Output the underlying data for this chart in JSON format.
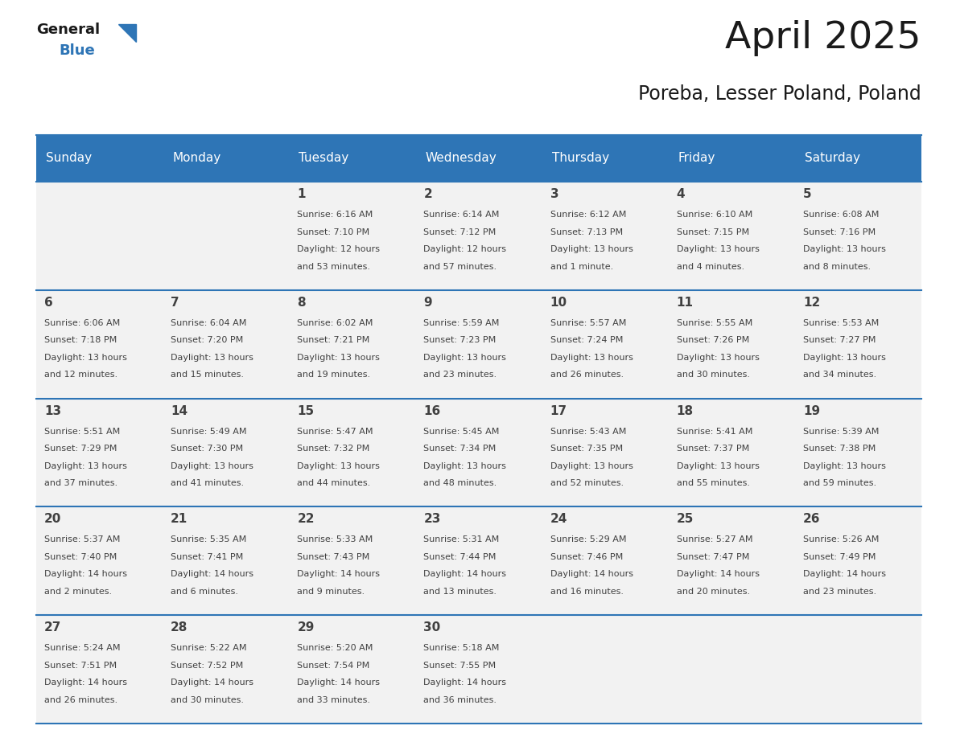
{
  "title": "April 2025",
  "subtitle": "Poreba, Lesser Poland, Poland",
  "header_bg": "#2E75B6",
  "header_text": "#FFFFFF",
  "day_names": [
    "Sunday",
    "Monday",
    "Tuesday",
    "Wednesday",
    "Thursday",
    "Friday",
    "Saturday"
  ],
  "cell_bg": "#F2F2F2",
  "row_line_color": "#2E75B6",
  "text_color": "#404040",
  "calendar": [
    [
      {
        "day": null,
        "info": ""
      },
      {
        "day": null,
        "info": ""
      },
      {
        "day": 1,
        "info": "Sunrise: 6:16 AM\nSunset: 7:10 PM\nDaylight: 12 hours\nand 53 minutes."
      },
      {
        "day": 2,
        "info": "Sunrise: 6:14 AM\nSunset: 7:12 PM\nDaylight: 12 hours\nand 57 minutes."
      },
      {
        "day": 3,
        "info": "Sunrise: 6:12 AM\nSunset: 7:13 PM\nDaylight: 13 hours\nand 1 minute."
      },
      {
        "day": 4,
        "info": "Sunrise: 6:10 AM\nSunset: 7:15 PM\nDaylight: 13 hours\nand 4 minutes."
      },
      {
        "day": 5,
        "info": "Sunrise: 6:08 AM\nSunset: 7:16 PM\nDaylight: 13 hours\nand 8 minutes."
      }
    ],
    [
      {
        "day": 6,
        "info": "Sunrise: 6:06 AM\nSunset: 7:18 PM\nDaylight: 13 hours\nand 12 minutes."
      },
      {
        "day": 7,
        "info": "Sunrise: 6:04 AM\nSunset: 7:20 PM\nDaylight: 13 hours\nand 15 minutes."
      },
      {
        "day": 8,
        "info": "Sunrise: 6:02 AM\nSunset: 7:21 PM\nDaylight: 13 hours\nand 19 minutes."
      },
      {
        "day": 9,
        "info": "Sunrise: 5:59 AM\nSunset: 7:23 PM\nDaylight: 13 hours\nand 23 minutes."
      },
      {
        "day": 10,
        "info": "Sunrise: 5:57 AM\nSunset: 7:24 PM\nDaylight: 13 hours\nand 26 minutes."
      },
      {
        "day": 11,
        "info": "Sunrise: 5:55 AM\nSunset: 7:26 PM\nDaylight: 13 hours\nand 30 minutes."
      },
      {
        "day": 12,
        "info": "Sunrise: 5:53 AM\nSunset: 7:27 PM\nDaylight: 13 hours\nand 34 minutes."
      }
    ],
    [
      {
        "day": 13,
        "info": "Sunrise: 5:51 AM\nSunset: 7:29 PM\nDaylight: 13 hours\nand 37 minutes."
      },
      {
        "day": 14,
        "info": "Sunrise: 5:49 AM\nSunset: 7:30 PM\nDaylight: 13 hours\nand 41 minutes."
      },
      {
        "day": 15,
        "info": "Sunrise: 5:47 AM\nSunset: 7:32 PM\nDaylight: 13 hours\nand 44 minutes."
      },
      {
        "day": 16,
        "info": "Sunrise: 5:45 AM\nSunset: 7:34 PM\nDaylight: 13 hours\nand 48 minutes."
      },
      {
        "day": 17,
        "info": "Sunrise: 5:43 AM\nSunset: 7:35 PM\nDaylight: 13 hours\nand 52 minutes."
      },
      {
        "day": 18,
        "info": "Sunrise: 5:41 AM\nSunset: 7:37 PM\nDaylight: 13 hours\nand 55 minutes."
      },
      {
        "day": 19,
        "info": "Sunrise: 5:39 AM\nSunset: 7:38 PM\nDaylight: 13 hours\nand 59 minutes."
      }
    ],
    [
      {
        "day": 20,
        "info": "Sunrise: 5:37 AM\nSunset: 7:40 PM\nDaylight: 14 hours\nand 2 minutes."
      },
      {
        "day": 21,
        "info": "Sunrise: 5:35 AM\nSunset: 7:41 PM\nDaylight: 14 hours\nand 6 minutes."
      },
      {
        "day": 22,
        "info": "Sunrise: 5:33 AM\nSunset: 7:43 PM\nDaylight: 14 hours\nand 9 minutes."
      },
      {
        "day": 23,
        "info": "Sunrise: 5:31 AM\nSunset: 7:44 PM\nDaylight: 14 hours\nand 13 minutes."
      },
      {
        "day": 24,
        "info": "Sunrise: 5:29 AM\nSunset: 7:46 PM\nDaylight: 14 hours\nand 16 minutes."
      },
      {
        "day": 25,
        "info": "Sunrise: 5:27 AM\nSunset: 7:47 PM\nDaylight: 14 hours\nand 20 minutes."
      },
      {
        "day": 26,
        "info": "Sunrise: 5:26 AM\nSunset: 7:49 PM\nDaylight: 14 hours\nand 23 minutes."
      }
    ],
    [
      {
        "day": 27,
        "info": "Sunrise: 5:24 AM\nSunset: 7:51 PM\nDaylight: 14 hours\nand 26 minutes."
      },
      {
        "day": 28,
        "info": "Sunrise: 5:22 AM\nSunset: 7:52 PM\nDaylight: 14 hours\nand 30 minutes."
      },
      {
        "day": 29,
        "info": "Sunrise: 5:20 AM\nSunset: 7:54 PM\nDaylight: 14 hours\nand 33 minutes."
      },
      {
        "day": 30,
        "info": "Sunrise: 5:18 AM\nSunset: 7:55 PM\nDaylight: 14 hours\nand 36 minutes."
      },
      {
        "day": null,
        "info": ""
      },
      {
        "day": null,
        "info": ""
      },
      {
        "day": null,
        "info": ""
      }
    ]
  ]
}
